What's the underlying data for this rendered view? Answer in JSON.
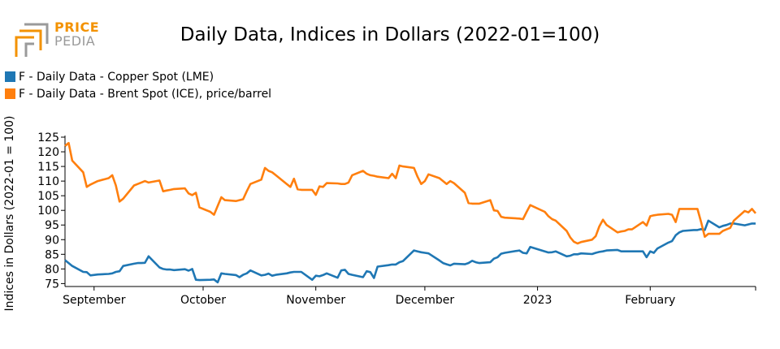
{
  "logo": {
    "line1": "PRICE",
    "line2": "PEDIA",
    "colors": {
      "orange": "#f39200",
      "gray": "#9a9a9a"
    }
  },
  "chart_data": {
    "type": "line",
    "title": "Daily Data, Indices in Dollars (2022-01=100)",
    "ylabel": "Indices in Dollars (2022-01 = 100)",
    "xlabel": "",
    "ylim": [
      74,
      125
    ],
    "yticks": [
      75,
      80,
      85,
      90,
      95,
      100,
      105,
      110,
      115,
      120,
      125
    ],
    "xlim": [
      "2022-08-24",
      "2023-03-02"
    ],
    "xticks": [
      {
        "label": "September",
        "date": "2022-09-01"
      },
      {
        "label": "October",
        "date": "2022-10-01"
      },
      {
        "label": "November",
        "date": "2022-11-01"
      },
      {
        "label": "December",
        "date": "2022-12-01"
      },
      {
        "label": "2023",
        "date": "2023-01-01"
      },
      {
        "label": "February",
        "date": "2023-02-01"
      }
    ],
    "legend_position": "top-left",
    "grid": false,
    "series": [
      {
        "name": "F - Daily Data - Copper Spot (LME)",
        "color": "#1f77b4",
        "points": [
          [
            "2022-08-24",
            83.0
          ],
          [
            "2022-08-25",
            82.0
          ],
          [
            "2022-08-26",
            81.0
          ],
          [
            "2022-08-29",
            79.0
          ],
          [
            "2022-08-30",
            78.9
          ],
          [
            "2022-08-31",
            77.8
          ],
          [
            "2022-09-02",
            78.1
          ],
          [
            "2022-09-05",
            78.3
          ],
          [
            "2022-09-06",
            78.5
          ],
          [
            "2022-09-07",
            79.0
          ],
          [
            "2022-09-08",
            79.2
          ],
          [
            "2022-09-09",
            81.0
          ],
          [
            "2022-09-12",
            81.8
          ],
          [
            "2022-09-13",
            82.0
          ],
          [
            "2022-09-14",
            82.0
          ],
          [
            "2022-09-15",
            82.1
          ],
          [
            "2022-09-16",
            84.3
          ],
          [
            "2022-09-19",
            80.5
          ],
          [
            "2022-09-20",
            80.0
          ],
          [
            "2022-09-21",
            79.8
          ],
          [
            "2022-09-22",
            79.8
          ],
          [
            "2022-09-23",
            79.6
          ],
          [
            "2022-09-26",
            79.9
          ],
          [
            "2022-09-27",
            79.4
          ],
          [
            "2022-09-28",
            80.0
          ],
          [
            "2022-09-29",
            76.3
          ],
          [
            "2022-09-30",
            76.2
          ],
          [
            "2022-10-03",
            76.3
          ],
          [
            "2022-10-04",
            76.4
          ],
          [
            "2022-10-05",
            75.4
          ],
          [
            "2022-10-06",
            78.5
          ],
          [
            "2022-10-07",
            78.3
          ],
          [
            "2022-10-10",
            77.9
          ],
          [
            "2022-10-11",
            77.2
          ],
          [
            "2022-10-12",
            78.0
          ],
          [
            "2022-10-13",
            78.5
          ],
          [
            "2022-10-14",
            79.5
          ],
          [
            "2022-10-17",
            77.8
          ],
          [
            "2022-10-18",
            78.0
          ],
          [
            "2022-10-19",
            78.4
          ],
          [
            "2022-10-20",
            77.7
          ],
          [
            "2022-10-21",
            78.0
          ],
          [
            "2022-10-24",
            78.5
          ],
          [
            "2022-10-25",
            78.8
          ],
          [
            "2022-10-26",
            79.0
          ],
          [
            "2022-10-27",
            79.0
          ],
          [
            "2022-10-28",
            79.0
          ],
          [
            "2022-10-31",
            76.3
          ],
          [
            "2022-11-01",
            77.7
          ],
          [
            "2022-11-02",
            77.5
          ],
          [
            "2022-11-03",
            77.9
          ],
          [
            "2022-11-04",
            78.5
          ],
          [
            "2022-11-07",
            77.0
          ],
          [
            "2022-11-08",
            79.5
          ],
          [
            "2022-11-09",
            79.7
          ],
          [
            "2022-11-10",
            78.3
          ],
          [
            "2022-11-11",
            78.0
          ],
          [
            "2022-11-14",
            77.2
          ],
          [
            "2022-11-15",
            79.2
          ],
          [
            "2022-11-16",
            78.9
          ],
          [
            "2022-11-17",
            76.9
          ],
          [
            "2022-11-18",
            80.8
          ],
          [
            "2022-11-21",
            81.3
          ],
          [
            "2022-11-22",
            81.5
          ],
          [
            "2022-11-23",
            81.5
          ],
          [
            "2022-11-24",
            82.3
          ],
          [
            "2022-11-25",
            82.7
          ],
          [
            "2022-11-28",
            86.3
          ],
          [
            "2022-11-29",
            86.0
          ],
          [
            "2022-11-30",
            85.7
          ],
          [
            "2022-12-01",
            85.5
          ],
          [
            "2022-12-02",
            85.3
          ],
          [
            "2022-12-05",
            82.9
          ],
          [
            "2022-12-06",
            82.0
          ],
          [
            "2022-12-07",
            81.6
          ],
          [
            "2022-12-08",
            81.2
          ],
          [
            "2022-12-09",
            81.8
          ],
          [
            "2022-12-12",
            81.6
          ],
          [
            "2022-12-13",
            82.0
          ],
          [
            "2022-12-14",
            82.8
          ],
          [
            "2022-12-15",
            82.3
          ],
          [
            "2022-12-16",
            82.0
          ],
          [
            "2022-12-19",
            82.3
          ],
          [
            "2022-12-20",
            83.5
          ],
          [
            "2022-12-21",
            84.0
          ],
          [
            "2022-12-22",
            85.2
          ],
          [
            "2022-12-23",
            85.5
          ],
          [
            "2022-12-27",
            86.3
          ],
          [
            "2022-12-28",
            85.5
          ],
          [
            "2022-12-29",
            85.3
          ],
          [
            "2022-12-30",
            87.5
          ],
          [
            "2023-01-03",
            86.0
          ],
          [
            "2023-01-04",
            85.6
          ],
          [
            "2023-01-05",
            85.7
          ],
          [
            "2023-01-06",
            86.0
          ],
          [
            "2023-01-09",
            84.3
          ],
          [
            "2023-01-10",
            84.5
          ],
          [
            "2023-01-11",
            85.0
          ],
          [
            "2023-01-12",
            85.0
          ],
          [
            "2023-01-13",
            85.3
          ],
          [
            "2023-01-16",
            85.1
          ],
          [
            "2023-01-17",
            85.5
          ],
          [
            "2023-01-18",
            85.8
          ],
          [
            "2023-01-19",
            86.0
          ],
          [
            "2023-01-20",
            86.3
          ],
          [
            "2023-01-23",
            86.5
          ],
          [
            "2023-01-24",
            86.0
          ],
          [
            "2023-01-25",
            86.0
          ],
          [
            "2023-01-26",
            86.0
          ],
          [
            "2023-01-27",
            86.0
          ],
          [
            "2023-01-30",
            86.0
          ],
          [
            "2023-01-31",
            84.0
          ],
          [
            "2023-02-01",
            86.0
          ],
          [
            "2023-02-02",
            85.5
          ],
          [
            "2023-02-03",
            87.0
          ],
          [
            "2023-02-06",
            89.0
          ],
          [
            "2023-02-07",
            89.5
          ],
          [
            "2023-02-08",
            91.5
          ],
          [
            "2023-02-09",
            92.5
          ],
          [
            "2023-02-10",
            93.0
          ],
          [
            "2023-02-13",
            93.3
          ],
          [
            "2023-02-14",
            93.3
          ],
          [
            "2023-02-15",
            93.6
          ],
          [
            "2023-02-16",
            93.3
          ],
          [
            "2023-02-17",
            96.5
          ],
          [
            "2023-02-20",
            94.2
          ],
          [
            "2023-02-21",
            94.7
          ],
          [
            "2023-02-22",
            95.0
          ],
          [
            "2023-02-23",
            95.5
          ],
          [
            "2023-02-24",
            95.5
          ],
          [
            "2023-02-27",
            94.9
          ],
          [
            "2023-02-28",
            95.2
          ],
          [
            "2023-03-01",
            95.5
          ],
          [
            "2023-03-02",
            95.5
          ]
        ]
      },
      {
        "name": "F - Daily Data - Brent Spot (ICE), price/barrel",
        "color": "#ff7f0e",
        "points": [
          [
            "2022-08-24",
            122.0
          ],
          [
            "2022-08-25",
            123.0
          ],
          [
            "2022-08-26",
            117.0
          ],
          [
            "2022-08-29",
            113.0
          ],
          [
            "2022-08-30",
            108.0
          ],
          [
            "2022-08-31",
            108.8
          ],
          [
            "2022-09-02",
            110.0
          ],
          [
            "2022-09-05",
            111.0
          ],
          [
            "2022-09-06",
            112.0
          ],
          [
            "2022-09-07",
            108.5
          ],
          [
            "2022-09-08",
            103.0
          ],
          [
            "2022-09-09",
            104.0
          ],
          [
            "2022-09-12",
            108.5
          ],
          [
            "2022-09-13",
            109.0
          ],
          [
            "2022-09-14",
            109.5
          ],
          [
            "2022-09-15",
            110.0
          ],
          [
            "2022-09-16",
            109.5
          ],
          [
            "2022-09-19",
            110.2
          ],
          [
            "2022-09-20",
            106.5
          ],
          [
            "2022-09-21",
            106.8
          ],
          [
            "2022-09-22",
            107.0
          ],
          [
            "2022-09-23",
            107.3
          ],
          [
            "2022-09-26",
            107.5
          ],
          [
            "2022-09-27",
            105.8
          ],
          [
            "2022-09-28",
            105.2
          ],
          [
            "2022-09-29",
            106.0
          ],
          [
            "2022-09-30",
            101.0
          ],
          [
            "2022-10-03",
            99.5
          ],
          [
            "2022-10-04",
            98.5
          ],
          [
            "2022-10-05",
            101.5
          ],
          [
            "2022-10-06",
            104.5
          ],
          [
            "2022-10-07",
            103.5
          ],
          [
            "2022-10-10",
            103.2
          ],
          [
            "2022-10-11",
            103.5
          ],
          [
            "2022-10-12",
            103.8
          ],
          [
            "2022-10-13",
            106.5
          ],
          [
            "2022-10-14",
            109.0
          ],
          [
            "2022-10-17",
            110.5
          ],
          [
            "2022-10-18",
            114.5
          ],
          [
            "2022-10-19",
            113.5
          ],
          [
            "2022-10-20",
            113.0
          ],
          [
            "2022-10-21",
            112.0
          ],
          [
            "2022-10-24",
            109.0
          ],
          [
            "2022-10-25",
            108.0
          ],
          [
            "2022-10-26",
            110.8
          ],
          [
            "2022-10-27",
            107.2
          ],
          [
            "2022-10-28",
            107.0
          ],
          [
            "2022-10-31",
            107.0
          ],
          [
            "2022-11-01",
            105.3
          ],
          [
            "2022-11-02",
            108.2
          ],
          [
            "2022-11-03",
            108.0
          ],
          [
            "2022-11-04",
            109.3
          ],
          [
            "2022-11-07",
            109.2
          ],
          [
            "2022-11-08",
            109.0
          ],
          [
            "2022-11-09",
            109.0
          ],
          [
            "2022-11-10",
            109.5
          ],
          [
            "2022-11-11",
            112.0
          ],
          [
            "2022-11-14",
            113.5
          ],
          [
            "2022-11-15",
            112.5
          ],
          [
            "2022-11-16",
            112.0
          ],
          [
            "2022-11-17",
            111.8
          ],
          [
            "2022-11-18",
            111.5
          ],
          [
            "2022-11-21",
            111.0
          ],
          [
            "2022-11-22",
            112.5
          ],
          [
            "2022-11-23",
            111.0
          ],
          [
            "2022-11-24",
            115.3
          ],
          [
            "2022-11-25",
            115.0
          ],
          [
            "2022-11-28",
            114.5
          ],
          [
            "2022-11-29",
            111.5
          ],
          [
            "2022-11-30",
            109.0
          ],
          [
            "2022-12-01",
            110.0
          ],
          [
            "2022-12-02",
            112.3
          ],
          [
            "2022-12-05",
            111.0
          ],
          [
            "2022-12-06",
            110.0
          ],
          [
            "2022-12-07",
            109.0
          ],
          [
            "2022-12-08",
            110.0
          ],
          [
            "2022-12-09",
            109.3
          ],
          [
            "2022-12-12",
            106.0
          ],
          [
            "2022-12-13",
            102.5
          ],
          [
            "2022-12-14",
            102.3
          ],
          [
            "2022-12-15",
            102.3
          ],
          [
            "2022-12-16",
            102.3
          ],
          [
            "2022-12-19",
            103.5
          ],
          [
            "2022-12-20",
            100.0
          ],
          [
            "2022-12-21",
            99.8
          ],
          [
            "2022-12-22",
            97.8
          ],
          [
            "2022-12-23",
            97.5
          ],
          [
            "2022-12-27",
            97.2
          ],
          [
            "2022-12-28",
            97.0
          ],
          [
            "2022-12-29",
            99.5
          ],
          [
            "2022-12-30",
            101.8
          ],
          [
            "2023-01-03",
            99.5
          ],
          [
            "2023-01-04",
            98.0
          ],
          [
            "2023-01-05",
            97.0
          ],
          [
            "2023-01-06",
            96.5
          ],
          [
            "2023-01-09",
            93.0
          ],
          [
            "2023-01-10",
            90.8
          ],
          [
            "2023-01-11",
            89.3
          ],
          [
            "2023-01-12",
            88.7
          ],
          [
            "2023-01-13",
            89.2
          ],
          [
            "2023-01-16",
            90.0
          ],
          [
            "2023-01-17",
            91.2
          ],
          [
            "2023-01-18",
            94.5
          ],
          [
            "2023-01-19",
            96.8
          ],
          [
            "2023-01-20",
            95.0
          ],
          [
            "2023-01-23",
            92.5
          ],
          [
            "2023-01-24",
            92.8
          ],
          [
            "2023-01-25",
            93.0
          ],
          [
            "2023-01-26",
            93.5
          ],
          [
            "2023-01-27",
            93.5
          ],
          [
            "2023-01-30",
            96.0
          ],
          [
            "2023-01-31",
            94.8
          ],
          [
            "2023-02-01",
            98.0
          ],
          [
            "2023-02-02",
            98.3
          ],
          [
            "2023-02-03",
            98.5
          ],
          [
            "2023-02-06",
            98.8
          ],
          [
            "2023-02-07",
            98.5
          ],
          [
            "2023-02-08",
            96.0
          ],
          [
            "2023-02-09",
            100.5
          ],
          [
            "2023-02-10",
            100.5
          ],
          [
            "2023-02-13",
            100.5
          ],
          [
            "2023-02-14",
            100.5
          ],
          [
            "2023-02-15",
            96.0
          ],
          [
            "2023-02-16",
            91.0
          ],
          [
            "2023-02-17",
            92.0
          ],
          [
            "2023-02-20",
            92.0
          ],
          [
            "2023-02-21",
            93.0
          ],
          [
            "2023-02-22",
            93.5
          ],
          [
            "2023-02-23",
            94.0
          ],
          [
            "2023-02-24",
            96.5
          ],
          [
            "2023-02-27",
            99.8
          ],
          [
            "2023-02-28",
            99.3
          ],
          [
            "2023-03-01",
            100.5
          ],
          [
            "2023-03-02",
            99.0
          ]
        ]
      }
    ]
  }
}
